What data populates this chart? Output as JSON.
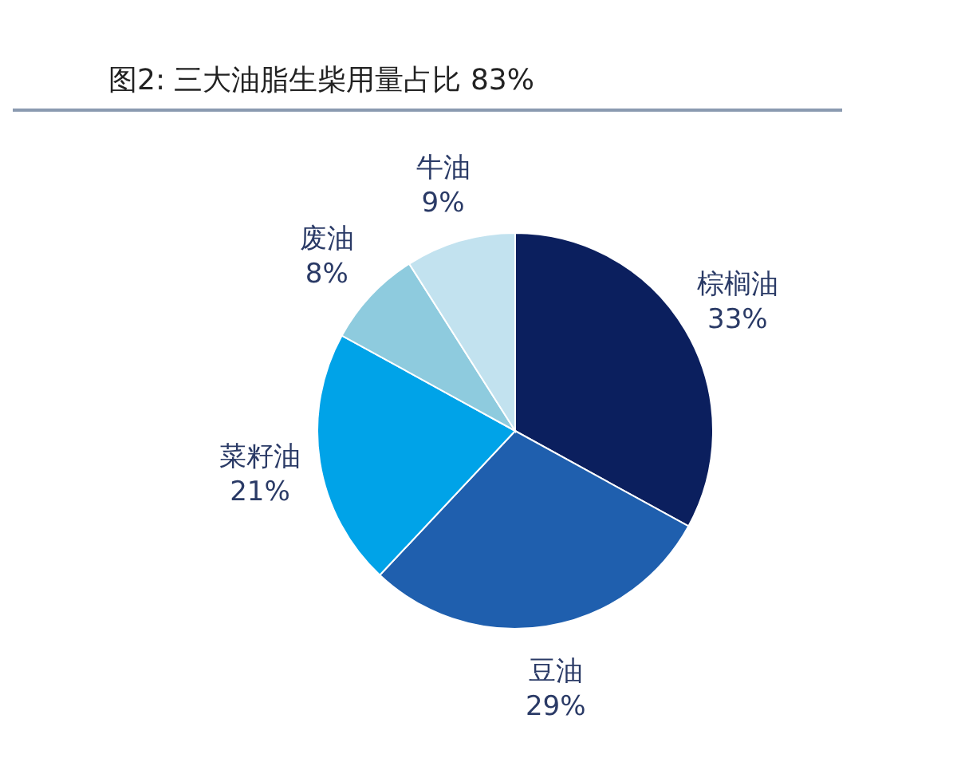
{
  "chart_data": {
    "type": "pie",
    "title": "图2:  三大油脂生柴用量占比 83%",
    "categories": [
      "棕榈油",
      "豆油",
      "菜籽油",
      "废油",
      "牛油"
    ],
    "values": [
      33,
      29,
      21,
      8,
      9
    ],
    "value_labels": [
      "33%",
      "29%",
      "21%",
      "8%",
      "9%"
    ],
    "colors": [
      "#0b1f5e",
      "#1f5fae",
      "#00a3e8",
      "#8ecbde",
      "#c2e2ef"
    ],
    "legend": false
  }
}
